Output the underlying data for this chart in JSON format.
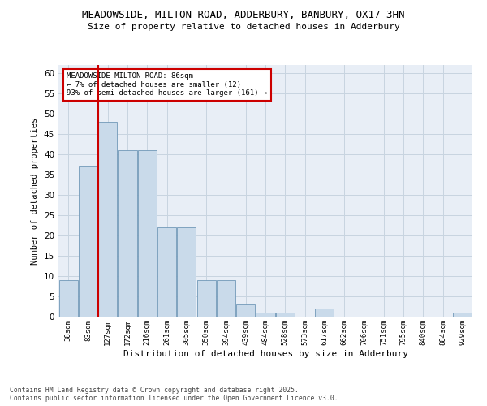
{
  "title_line1": "MEADOWSIDE, MILTON ROAD, ADDERBURY, BANBURY, OX17 3HN",
  "title_line2": "Size of property relative to detached houses in Adderbury",
  "xlabel": "Distribution of detached houses by size in Adderbury",
  "ylabel": "Number of detached properties",
  "categories": [
    "38sqm",
    "83sqm",
    "127sqm",
    "172sqm",
    "216sqm",
    "261sqm",
    "305sqm",
    "350sqm",
    "394sqm",
    "439sqm",
    "484sqm",
    "528sqm",
    "573sqm",
    "617sqm",
    "662sqm",
    "706sqm",
    "751sqm",
    "795sqm",
    "840sqm",
    "884sqm",
    "929sqm"
  ],
  "values": [
    9,
    37,
    48,
    41,
    41,
    22,
    22,
    9,
    9,
    3,
    1,
    1,
    0,
    2,
    0,
    0,
    0,
    0,
    0,
    0,
    1
  ],
  "bar_color": "#c9daea",
  "bar_edge_color": "#7098b8",
  "ylim": [
    0,
    62
  ],
  "yticks": [
    0,
    5,
    10,
    15,
    20,
    25,
    30,
    35,
    40,
    45,
    50,
    55,
    60
  ],
  "red_line_x": 1.5,
  "annotation_title": "MEADOWSIDE MILTON ROAD: 86sqm",
  "annotation_line2": "← 7% of detached houses are smaller (12)",
  "annotation_line3": "93% of semi-detached houses are larger (161) →",
  "annotation_box_color": "#ffffff",
  "annotation_box_edge": "#cc0000",
  "red_line_color": "#cc0000",
  "grid_color": "#c8d4e0",
  "bg_color": "#e8eef6",
  "footer_line1": "Contains HM Land Registry data © Crown copyright and database right 2025.",
  "footer_line2": "Contains public sector information licensed under the Open Government Licence v3.0."
}
